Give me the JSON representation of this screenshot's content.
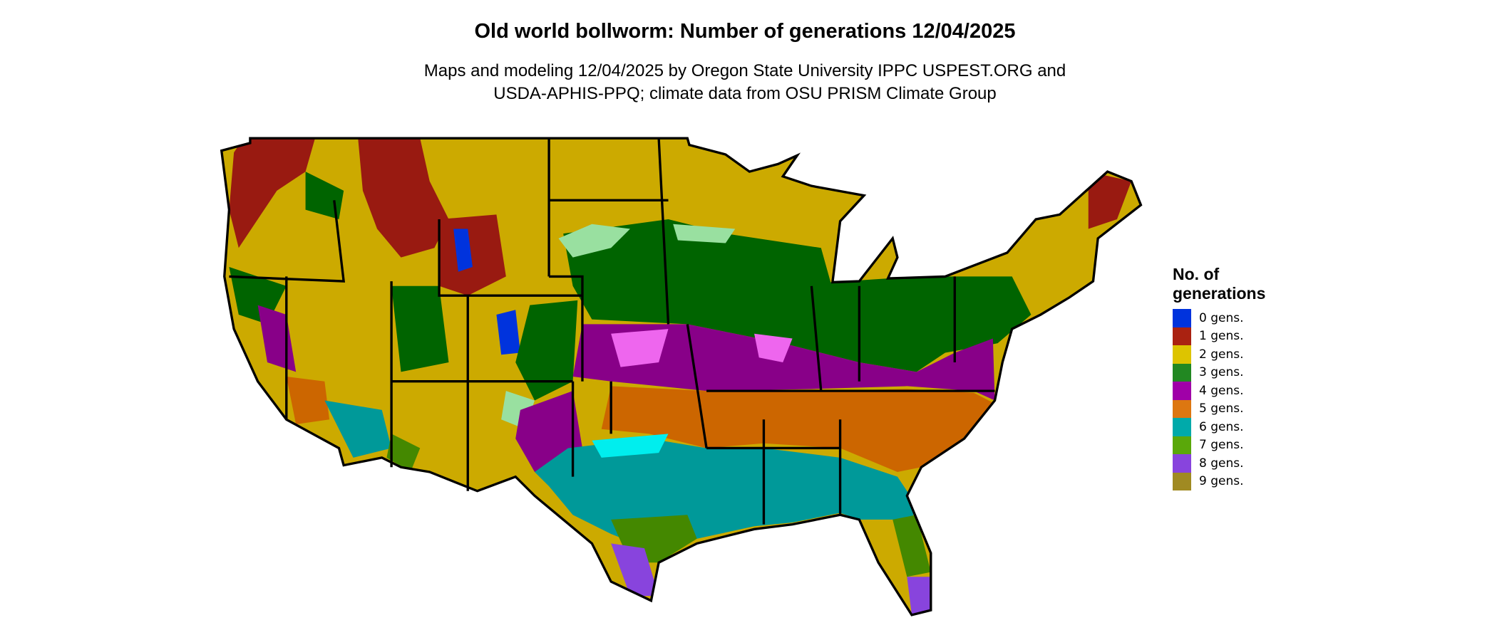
{
  "title": "Old world bollworm: Number of generations 12/04/2025",
  "subtitle_lines": [
    "Maps and modeling 12/04/2025 by Oregon State University IPPC USPEST.ORG and",
    "USDA-APHIS-PPQ; climate data from OSU PRISM Climate Group"
  ],
  "legend": {
    "title_lines": [
      "No. of",
      "generations"
    ],
    "items": [
      {
        "label": "0 gens.",
        "color": "#0033dd"
      },
      {
        "label": "1 gens.",
        "color": "#aa2211"
      },
      {
        "label": "2 gens.",
        "color": "#ddc400"
      },
      {
        "label": "3 gens.",
        "color": "#228822"
      },
      {
        "label": "4 gens.",
        "color": "#a000a8"
      },
      {
        "label": "5 gens.",
        "color": "#dd7711"
      },
      {
        "label": "6 gens.",
        "color": "#00aaaa"
      },
      {
        "label": "7 gens.",
        "color": "#5aa80a"
      },
      {
        "label": "8 gens.",
        "color": "#8844dd"
      },
      {
        "label": "9 gens.",
        "color": "#a08a22"
      }
    ]
  },
  "map_colors": {
    "light_green": "#99e0a0",
    "light_magenta": "#ee66ee",
    "cyan": "#00eeee",
    "border": "#000000"
  }
}
